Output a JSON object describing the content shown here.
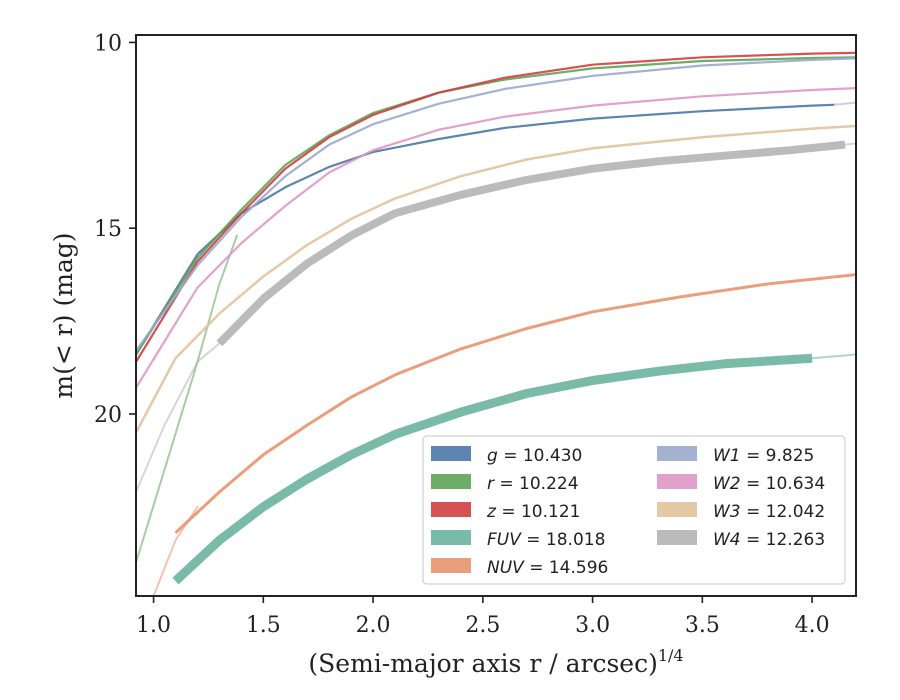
{
  "chart_data": {
    "type": "line",
    "xlabel": "(Semi-major axis r / arcsec)",
    "xlabel_superscript": "1/4",
    "ylabel": "m(< r) (mag)",
    "xlim": [
      0.92,
      4.2
    ],
    "ylim": [
      24.9,
      9.8
    ],
    "y_inverted": true,
    "grid": false,
    "legend_position": "lower-right",
    "xticks": [
      1.0,
      1.5,
      2.0,
      2.5,
      3.0,
      3.5,
      4.0
    ],
    "xtick_labels": [
      "1.0",
      "1.5",
      "2.0",
      "2.5",
      "3.0",
      "3.5",
      "4.0"
    ],
    "yticks": [
      10,
      15,
      20
    ],
    "ytick_labels": [
      "10",
      "15",
      "20"
    ],
    "series": [
      {
        "name": "g",
        "label_value": "10.430",
        "color": "#4c78a8",
        "width": 2.2,
        "points": [
          [
            0.92,
            18.4
          ],
          [
            1.2,
            15.7
          ],
          [
            1.4,
            14.6
          ],
          [
            1.6,
            13.9
          ],
          [
            1.8,
            13.35
          ],
          [
            2.0,
            12.95
          ],
          [
            2.3,
            12.6
          ],
          [
            2.6,
            12.3
          ],
          [
            3.0,
            12.05
          ],
          [
            3.5,
            11.85
          ],
          [
            4.0,
            11.7
          ],
          [
            4.1,
            11.68
          ]
        ]
      },
      {
        "name": "r",
        "label_value": "10.224",
        "color": "#5da457",
        "width": 2.2,
        "points": [
          [
            0.92,
            18.4
          ],
          [
            1.2,
            15.8
          ],
          [
            1.4,
            14.5
          ],
          [
            1.6,
            13.3
          ],
          [
            1.8,
            12.5
          ],
          [
            2.0,
            11.9
          ],
          [
            2.3,
            11.35
          ],
          [
            2.6,
            11.0
          ],
          [
            3.0,
            10.7
          ],
          [
            3.5,
            10.5
          ],
          [
            4.0,
            10.42
          ],
          [
            4.2,
            10.4
          ]
        ]
      },
      {
        "name": "z",
        "label_value": "10.121",
        "color": "#d03f3f",
        "width": 2.2,
        "points": [
          [
            0.92,
            18.6
          ],
          [
            1.2,
            15.9
          ],
          [
            1.4,
            14.6
          ],
          [
            1.6,
            13.4
          ],
          [
            1.8,
            12.55
          ],
          [
            2.0,
            11.95
          ],
          [
            2.3,
            11.35
          ],
          [
            2.6,
            10.95
          ],
          [
            3.0,
            10.6
          ],
          [
            3.5,
            10.4
          ],
          [
            4.0,
            10.3
          ],
          [
            4.2,
            10.28
          ]
        ]
      },
      {
        "name": "FUV",
        "label_value": "18.018",
        "color": "#6ab49c",
        "width": 9,
        "points": [
          [
            1.1,
            24.5
          ],
          [
            1.3,
            23.4
          ],
          [
            1.5,
            22.5
          ],
          [
            1.7,
            21.75
          ],
          [
            1.9,
            21.1
          ],
          [
            2.1,
            20.55
          ],
          [
            2.4,
            19.95
          ],
          [
            2.7,
            19.45
          ],
          [
            3.0,
            19.1
          ],
          [
            3.3,
            18.85
          ],
          [
            3.6,
            18.65
          ],
          [
            4.0,
            18.5
          ]
        ]
      },
      {
        "name": "NUV",
        "label_value": "14.596",
        "color": "#e8936d",
        "width": 3,
        "points": [
          [
            1.1,
            23.2
          ],
          [
            1.3,
            22.1
          ],
          [
            1.5,
            21.1
          ],
          [
            1.7,
            20.3
          ],
          [
            1.9,
            19.55
          ],
          [
            2.1,
            18.95
          ],
          [
            2.4,
            18.25
          ],
          [
            2.7,
            17.7
          ],
          [
            3.0,
            17.25
          ],
          [
            3.4,
            16.85
          ],
          [
            3.8,
            16.5
          ],
          [
            4.2,
            16.25
          ]
        ]
      },
      {
        "name": "W1",
        "label_value": "9.825",
        "color": "#9aa8cc",
        "width": 2.2,
        "points": [
          [
            0.92,
            18.3
          ],
          [
            1.2,
            16.0
          ],
          [
            1.4,
            14.7
          ],
          [
            1.6,
            13.6
          ],
          [
            1.8,
            12.75
          ],
          [
            2.0,
            12.2
          ],
          [
            2.3,
            11.65
          ],
          [
            2.6,
            11.25
          ],
          [
            3.0,
            10.9
          ],
          [
            3.5,
            10.62
          ],
          [
            4.0,
            10.47
          ],
          [
            4.2,
            10.43
          ]
        ]
      },
      {
        "name": "W2",
        "label_value": "10.634",
        "color": "#df97c8",
        "width": 2.2,
        "points": [
          [
            0.92,
            19.3
          ],
          [
            1.2,
            16.6
          ],
          [
            1.4,
            15.4
          ],
          [
            1.6,
            14.4
          ],
          [
            1.8,
            13.5
          ],
          [
            2.0,
            12.9
          ],
          [
            2.3,
            12.35
          ],
          [
            2.6,
            12.0
          ],
          [
            3.0,
            11.7
          ],
          [
            3.5,
            11.45
          ],
          [
            4.0,
            11.28
          ],
          [
            4.2,
            11.23
          ]
        ]
      },
      {
        "name": "W3",
        "label_value": "12.042",
        "color": "#e1c39d",
        "width": 2.5,
        "points": [
          [
            0.92,
            20.5
          ],
          [
            1.1,
            18.5
          ],
          [
            1.3,
            17.3
          ],
          [
            1.5,
            16.3
          ],
          [
            1.7,
            15.45
          ],
          [
            1.9,
            14.75
          ],
          [
            2.1,
            14.2
          ],
          [
            2.4,
            13.6
          ],
          [
            2.7,
            13.15
          ],
          [
            3.0,
            12.85
          ],
          [
            3.5,
            12.55
          ],
          [
            4.0,
            12.32
          ],
          [
            4.2,
            12.25
          ]
        ]
      },
      {
        "name": "W4",
        "label_value": "12.263",
        "color": "#b4b4b4",
        "width": 8,
        "points": [
          [
            1.3,
            18.1
          ],
          [
            1.5,
            16.9
          ],
          [
            1.7,
            15.95
          ],
          [
            1.9,
            15.2
          ],
          [
            2.1,
            14.6
          ],
          [
            2.4,
            14.1
          ],
          [
            2.7,
            13.7
          ],
          [
            3.0,
            13.4
          ],
          [
            3.3,
            13.2
          ],
          [
            3.6,
            13.05
          ],
          [
            3.9,
            12.9
          ],
          [
            4.15,
            12.75
          ]
        ]
      }
    ],
    "legend": {
      "columns": [
        [
          {
            "label": "g = 10.430",
            "color": "#4c78a8"
          },
          {
            "label": "r = 10.224",
            "color": "#5da457"
          },
          {
            "label": "z = 10.121",
            "color": "#d03f3f"
          },
          {
            "label": "FUV = 18.018",
            "color": "#6ab49c"
          },
          {
            "label": "NUV = 14.596",
            "color": "#e8936d"
          }
        ],
        [
          {
            "label": "W1 = 9.825",
            "color": "#9aa8cc"
          },
          {
            "label": "W2 = 10.634",
            "color": "#df97c8"
          },
          {
            "label": "W3 = 12.042",
            "color": "#e1c39d"
          },
          {
            "label": "W4 = 12.263",
            "color": "#b4b4b4"
          }
        ]
      ]
    },
    "extrapolations": [
      {
        "name": "r-steep",
        "color": "#5da457",
        "points": [
          [
            0.92,
            24.0
          ],
          [
            1.05,
            21.5
          ],
          [
            1.2,
            18.6
          ],
          [
            1.3,
            16.5
          ],
          [
            1.38,
            15.2
          ]
        ]
      },
      {
        "name": "NUV-inner",
        "color": "#e8936d",
        "points": [
          [
            1.0,
            24.9
          ],
          [
            1.1,
            23.4
          ],
          [
            1.2,
            22.5
          ]
        ]
      },
      {
        "name": "W4-inner",
        "color": "#b4b4b4",
        "points": [
          [
            0.92,
            22.1
          ],
          [
            1.05,
            20.3
          ],
          [
            1.2,
            18.6
          ],
          [
            1.3,
            18.1
          ]
        ]
      },
      {
        "name": "FUV-outer",
        "color": "#6ab49c",
        "points": [
          [
            4.0,
            18.5
          ],
          [
            4.2,
            18.4
          ]
        ]
      },
      {
        "name": "W4-outer",
        "color": "#b4b4b4",
        "points": [
          [
            4.15,
            12.75
          ],
          [
            4.2,
            12.72
          ]
        ]
      },
      {
        "name": "g-outer",
        "color": "#9aa8cc",
        "points": [
          [
            4.1,
            11.68
          ],
          [
            4.2,
            11.62
          ]
        ]
      }
    ]
  }
}
